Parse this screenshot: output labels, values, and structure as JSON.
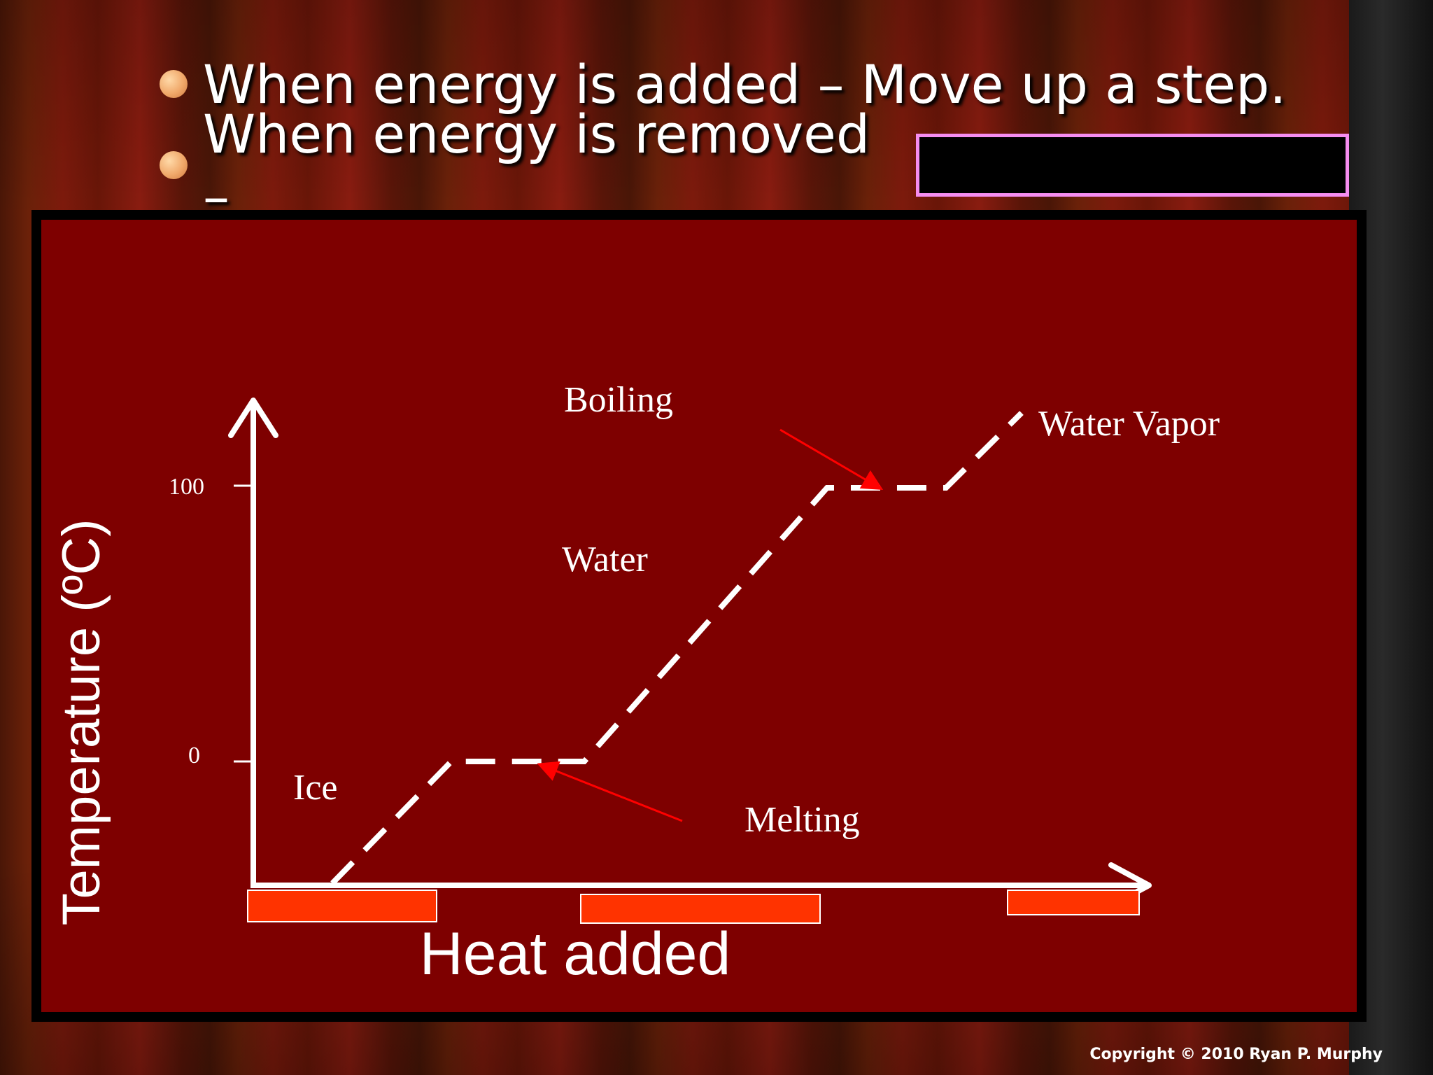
{
  "bullets": [
    {
      "text": "When energy is added – Move up a step."
    },
    {
      "text": "When energy is removed –"
    }
  ],
  "diagram": {
    "y_axis_label": "Temperature (ºC)",
    "x_axis_label": "Heat added",
    "tick_100": "100",
    "tick_0": "0",
    "label_ice": "Ice",
    "label_water": "Water",
    "label_boiling": "Boiling",
    "label_vapor": "Water Vapor",
    "label_melting": "Melting"
  },
  "colors": {
    "panel": "#7e0000",
    "curve": "#ffffff",
    "bar": "#ff3300",
    "arrow": "#ff0000",
    "answer_border": "#f58df0"
  },
  "footer": {
    "copyright": "Copyright © 2010 Ryan P. Murphy"
  }
}
